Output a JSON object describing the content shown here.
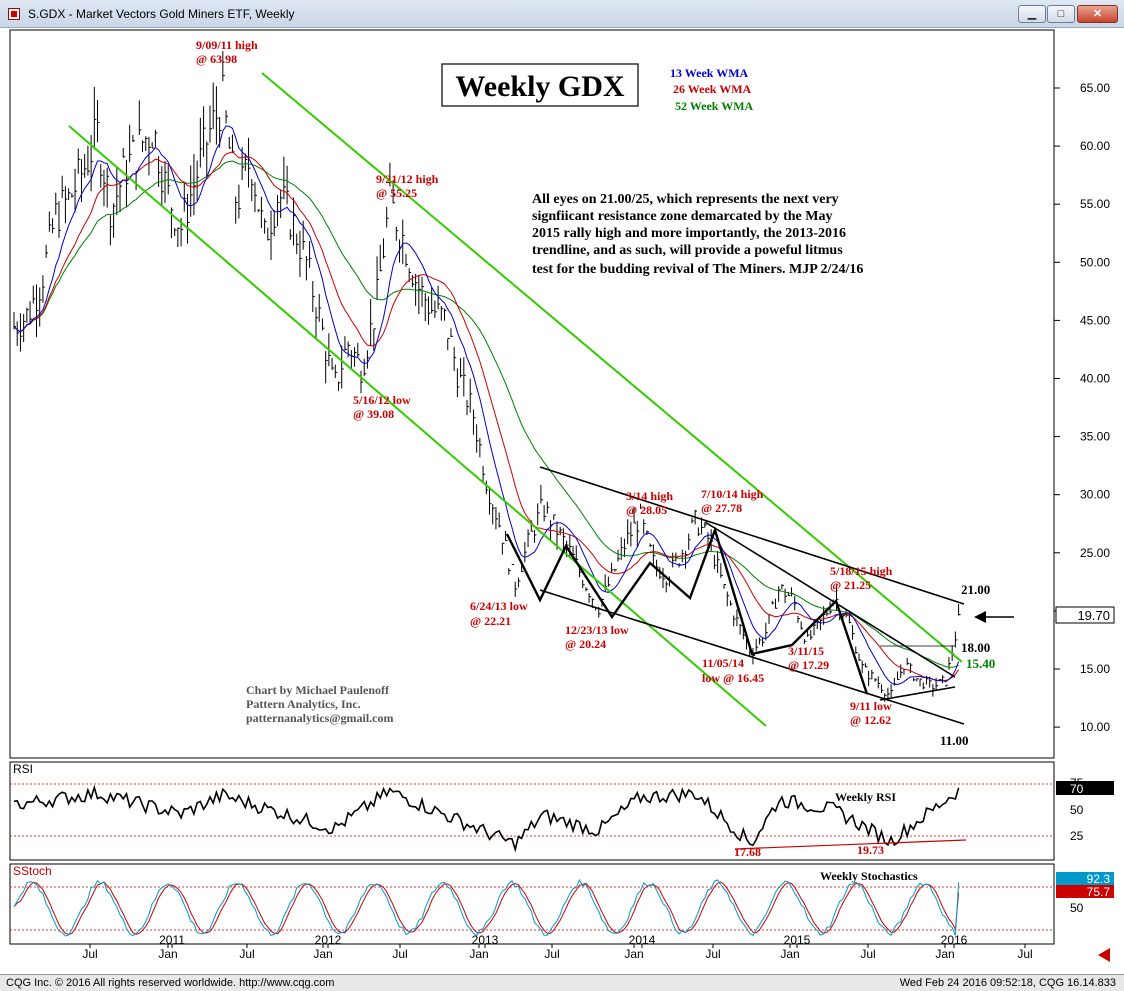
{
  "window": {
    "title": "S.GDX - Market Vectors Gold Miners ETF, Weekly",
    "icon": "app-icon",
    "buttons": [
      "minimize",
      "maximize",
      "close"
    ]
  },
  "footer": {
    "left": "CQG Inc. © 2016 All rights reserved worldwide. http://www.cqg.com",
    "right": "Wed Feb 24 2016 09:52:18, CQG 16.14.833"
  },
  "colors": {
    "wma13": "#0000cc",
    "wma26": "#cc0000",
    "wma52": "#008000",
    "channel": "#33cc00",
    "annotation": "#cc0000",
    "price_tag_bg": "#ffffff",
    "rsi_tag_bg": "#000000",
    "stoch_k_tag": "#0099cc",
    "stoch_d_tag": "#cc0000"
  },
  "chart_data": [
    {
      "type": "ohlc",
      "title": "Weekly GDX",
      "ylim": [
        8.2,
        69
      ],
      "y_ticks": [
        "65.00",
        "60.00",
        "55.00",
        "50.00",
        "45.00",
        "40.00",
        "35.00",
        "30.00",
        "25.00",
        "20.00",
        "15.00",
        "10.00"
      ],
      "x_ticks": [
        "Jul",
        "2011",
        "Jan",
        "Jul",
        "2012",
        "Jan",
        "Jul",
        "2013",
        "Jan",
        "Jul",
        "2014",
        "Jan",
        "Jul",
        "2015",
        "Jan",
        "Jul",
        "Jan",
        "2016",
        "Jul"
      ],
      "legend": [
        {
          "label": "13 Week WMA",
          "color": "#0000cc"
        },
        {
          "label": "26 Week WMA",
          "color": "#cc0000"
        },
        {
          "label": "52 Week WMA",
          "color": "#008000"
        }
      ],
      "last_price": "19.70",
      "close_path_by_month": [
        {
          "x": "2010-06",
          "y": 44.5
        },
        {
          "x": "2010-07",
          "y": 45.5
        },
        {
          "x": "2010-08",
          "y": 48.5
        },
        {
          "x": "2010-09",
          "y": 54
        },
        {
          "x": "2010-10",
          "y": 55.5
        },
        {
          "x": "2010-11",
          "y": 58
        },
        {
          "x": "2010-12",
          "y": 61
        },
        {
          "x": "2011-01",
          "y": 54.5
        },
        {
          "x": "2011-02",
          "y": 58
        },
        {
          "x": "2011-03",
          "y": 60
        },
        {
          "x": "2011-04",
          "y": 61.5
        },
        {
          "x": "2011-05",
          "y": 56
        },
        {
          "x": "2011-06",
          "y": 53
        },
        {
          "x": "2011-07",
          "y": 57
        },
        {
          "x": "2011-08",
          "y": 61
        },
        {
          "x": "2011-09",
          "y": 63.98
        },
        {
          "x": "2011-10",
          "y": 55
        },
        {
          "x": "2011-11",
          "y": 59
        },
        {
          "x": "2011-12",
          "y": 52
        },
        {
          "x": "2012-01",
          "y": 56
        },
        {
          "x": "2012-02",
          "y": 53.5
        },
        {
          "x": "2012-03",
          "y": 50
        },
        {
          "x": "2012-04",
          "y": 45
        },
        {
          "x": "2012-05",
          "y": 39.08
        },
        {
          "x": "2012-06",
          "y": 43
        },
        {
          "x": "2012-07",
          "y": 41
        },
        {
          "x": "2012-08",
          "y": 46
        },
        {
          "x": "2012-09",
          "y": 55.25
        },
        {
          "x": "2012-10",
          "y": 52
        },
        {
          "x": "2012-11",
          "y": 48
        },
        {
          "x": "2012-12",
          "y": 46
        },
        {
          "x": "2013-01",
          "y": 45
        },
        {
          "x": "2013-02",
          "y": 40
        },
        {
          "x": "2013-03",
          "y": 37
        },
        {
          "x": "2013-04",
          "y": 31
        },
        {
          "x": "2013-05",
          "y": 27
        },
        {
          "x": "2013-06",
          "y": 22.21
        },
        {
          "x": "2013-07",
          "y": 26
        },
        {
          "x": "2013-08",
          "y": 29
        },
        {
          "x": "2013-09",
          "y": 27
        },
        {
          "x": "2013-10",
          "y": 25
        },
        {
          "x": "2013-11",
          "y": 22.5
        },
        {
          "x": "2013-12",
          "y": 20.24
        },
        {
          "x": "2014-01",
          "y": 23
        },
        {
          "x": "2014-02",
          "y": 26
        },
        {
          "x": "2014-03",
          "y": 28.05
        },
        {
          "x": "2014-04",
          "y": 24
        },
        {
          "x": "2014-05",
          "y": 23
        },
        {
          "x": "2014-06",
          "y": 25
        },
        {
          "x": "2014-07",
          "y": 27.78
        },
        {
          "x": "2014-08",
          "y": 26
        },
        {
          "x": "2014-09",
          "y": 22
        },
        {
          "x": "2014-10",
          "y": 19
        },
        {
          "x": "2014-11",
          "y": 16.45
        },
        {
          "x": "2014-12",
          "y": 18
        },
        {
          "x": "2015-01",
          "y": 22
        },
        {
          "x": "2015-02",
          "y": 21
        },
        {
          "x": "2015-03",
          "y": 17.29
        },
        {
          "x": "2015-04",
          "y": 19
        },
        {
          "x": "2015-05",
          "y": 21.25
        },
        {
          "x": "2015-06",
          "y": 19
        },
        {
          "x": "2015-07",
          "y": 15
        },
        {
          "x": "2015-08",
          "y": 14
        },
        {
          "x": "2015-09",
          "y": 12.62
        },
        {
          "x": "2015-10",
          "y": 15.5
        },
        {
          "x": "2015-11",
          "y": 14
        },
        {
          "x": "2015-12",
          "y": 13.5
        },
        {
          "x": "2016-01",
          "y": 14
        },
        {
          "x": "2016-02",
          "y": 19.7
        }
      ],
      "annotations": [
        {
          "text": "9/09/11 high",
          "sub": "@ 63.98"
        },
        {
          "text": "9/21/12 high",
          "sub": "@ 55.25"
        },
        {
          "text": "5/16/12 low",
          "sub": "@ 39.08"
        },
        {
          "text": "6/24/13 low",
          "sub": "@ 22.21"
        },
        {
          "text": "12/23/13 low",
          "sub": "@ 20.24"
        },
        {
          "text": "3/14 high",
          "sub": "@ 28.05"
        },
        {
          "text": "7/10/14 high",
          "sub": "@ 27.78"
        },
        {
          "text": "11/05/14",
          "sub": "low @ 16.45"
        },
        {
          "text": "3/11/15",
          "sub": "@ 17.29"
        },
        {
          "text": "5/18/15 high",
          "sub": "@ 21.25"
        },
        {
          "text": "9/11  low",
          "sub": "@ 12.62"
        }
      ],
      "level_labels": [
        "21.00",
        "18.00",
        "15.40",
        "11.00"
      ],
      "commentary": [
        "All eyes on 21.00/25, which represents the next very",
        "signfiicant resistance zone demarcated by the May",
        "2015 rally high and more importantly, the 2013-2016",
        "trendline, and as such, will provide a poweful litmus",
        "test for the budding revival of The Miners. MJP 2/24/16"
      ],
      "credit": [
        "Chart by Michael Paulenoff",
        "Pattern Analytics, Inc.",
        "patternanalytics@gmail.com"
      ]
    },
    {
      "type": "line",
      "title": "RSI",
      "series_label": "Weekly RSI",
      "ylim": [
        10,
        80
      ],
      "y_ticks": [
        "75",
        "50",
        "25"
      ],
      "last_value": "70",
      "annotations": [
        "17.68",
        "19.73"
      ],
      "values_by_month": [
        {
          "x": "2010-06",
          "y": 55
        },
        {
          "x": "2010-12",
          "y": 66
        },
        {
          "x": "2011-06",
          "y": 46
        },
        {
          "x": "2011-09",
          "y": 64
        },
        {
          "x": "2012-05",
          "y": 32
        },
        {
          "x": "2012-09",
          "y": 68
        },
        {
          "x": "2013-06",
          "y": 17
        },
        {
          "x": "2013-08",
          "y": 45
        },
        {
          "x": "2013-12",
          "y": 30
        },
        {
          "x": "2014-03",
          "y": 62
        },
        {
          "x": "2014-07",
          "y": 66
        },
        {
          "x": "2014-11",
          "y": 17.68
        },
        {
          "x": "2015-01",
          "y": 60
        },
        {
          "x": "2015-05",
          "y": 50
        },
        {
          "x": "2015-09",
          "y": 19.73
        },
        {
          "x": "2016-02",
          "y": 70
        }
      ]
    },
    {
      "type": "line",
      "title": "SStoch",
      "series_label": "Weekly Stochastics",
      "ylim": [
        0,
        100
      ],
      "y_ticks": [
        "50"
      ],
      "last_values": [
        "92.3",
        "75.7"
      ]
    }
  ]
}
